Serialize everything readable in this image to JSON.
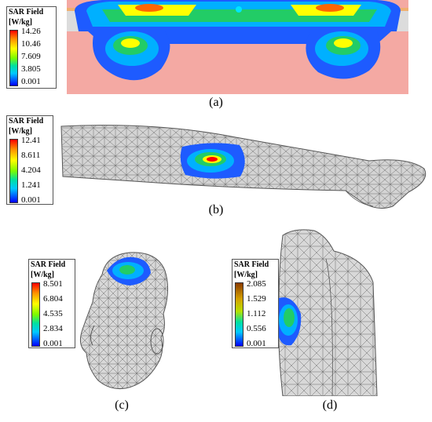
{
  "panels": {
    "a": {
      "caption": "(a)",
      "legend": {
        "title_line1": "SAR Field",
        "title_line2": "[W/kg]",
        "values": [
          "14.26",
          "10.46",
          "7.609",
          "3.805",
          "0.001"
        ]
      }
    },
    "b": {
      "caption": "(b)",
      "legend": {
        "title_line1": "SAR Field",
        "title_line2": "[W/kg]",
        "values": [
          "12.41",
          "8.611",
          "4.204",
          "1.241",
          "0.001"
        ]
      }
    },
    "c": {
      "caption": "(c)",
      "legend": {
        "title_line1": "SAR Field",
        "title_line2": "[W/kg]",
        "values": [
          "8.501",
          "6.804",
          "4.535",
          "2.834",
          "0.001"
        ]
      }
    },
    "d": {
      "caption": "(d)",
      "legend": {
        "title_line1": "SAR Field",
        "title_line2": "[W/kg]",
        "values": [
          "2.085",
          "1.529",
          "1.112",
          "0.556",
          "0.001"
        ]
      }
    }
  },
  "colors": {
    "tissue": "#f4a9a3",
    "skin_layer": "#dcdcdc",
    "mesh": "#555555",
    "hot": "#ff0000",
    "warm": "#ffff00",
    "mid": "#22cc44",
    "cool": "#1e90ff",
    "cold": "#0000cd"
  }
}
